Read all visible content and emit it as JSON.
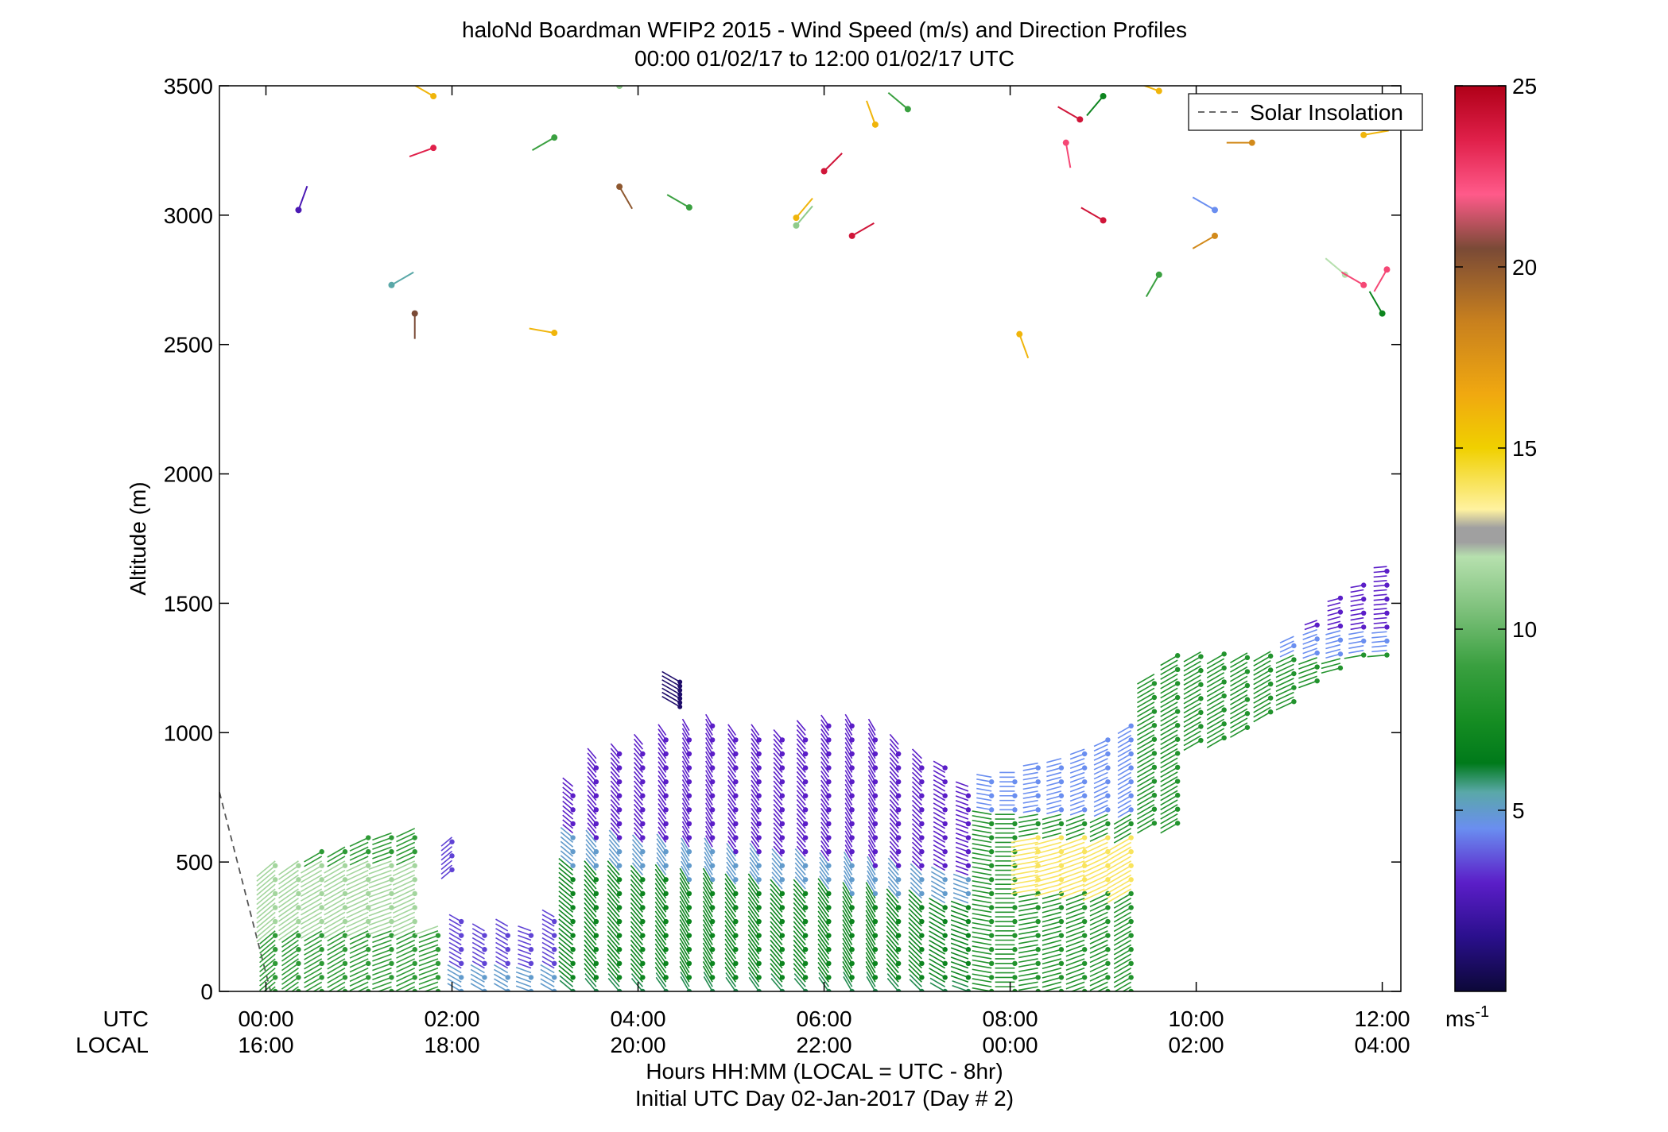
{
  "chart_data": {
    "type": "scatter",
    "title": "haloNd Boardman WFIP2 2015 - Wind Speed (m/s) and Direction Profiles",
    "subtitle": "00:00 01/02/17 to 12:00 01/02/17  UTC",
    "xlabel": "Hours HH:MM  (LOCAL = UTC - 8hr)",
    "xlabel2": "Initial UTC Day 02-Jan-2017 (Day # 2)",
    "ylabel": "Altitude (m)",
    "xlim": [
      -0.5,
      12.2
    ],
    "ylim": [
      0,
      3500
    ],
    "yticks": [
      0,
      500,
      1000,
      1500,
      2000,
      2500,
      3000,
      3500
    ],
    "xtick_row_label_utc": "UTC",
    "xtick_row_label_local": "LOCAL",
    "xticks": [
      {
        "hour": 0,
        "utc": "00:00",
        "local": "16:00"
      },
      {
        "hour": 2,
        "utc": "02:00",
        "local": "18:00"
      },
      {
        "hour": 4,
        "utc": "04:00",
        "local": "20:00"
      },
      {
        "hour": 6,
        "utc": "06:00",
        "local": "22:00"
      },
      {
        "hour": 8,
        "utc": "08:00",
        "local": "00:00"
      },
      {
        "hour": 10,
        "utc": "10:00",
        "local": "02:00"
      },
      {
        "hour": 12,
        "utc": "12:00",
        "local": "04:00"
      }
    ],
    "legend": {
      "placement": "top-right",
      "entries": [
        "Solar Insolation"
      ]
    },
    "solar_insolation": [
      [
        -0.5,
        770
      ],
      [
        0.05,
        0
      ]
    ],
    "colorbar": {
      "range": [
        0,
        25
      ],
      "ticks": [
        5,
        10,
        15,
        20,
        25
      ],
      "unit": "ms",
      "unit_sup": "-1",
      "stops": [
        [
          0,
          "#0c0838"
        ],
        [
          1.5,
          "#2a0f8c"
        ],
        [
          3,
          "#5b1ec8"
        ],
        [
          4.5,
          "#6a8ef0"
        ],
        [
          5.5,
          "#5aa8a8"
        ],
        [
          6.3,
          "#007a1a"
        ],
        [
          7.5,
          "#168d23"
        ],
        [
          9,
          "#3aa040"
        ],
        [
          10.5,
          "#7cc07a"
        ],
        [
          12,
          "#b6e0ae"
        ],
        [
          12.4,
          "#a0a0a0"
        ],
        [
          12.8,
          "#a0a0a0"
        ],
        [
          13.3,
          "#fff2a0"
        ],
        [
          15,
          "#f0d000"
        ],
        [
          16.5,
          "#f0a810"
        ],
        [
          18.5,
          "#c8801e"
        ],
        [
          20.5,
          "#7a4a36"
        ],
        [
          22,
          "#ff5a8a"
        ],
        [
          23.5,
          "#e0204a"
        ],
        [
          25,
          "#b00018"
        ]
      ]
    },
    "profiles": [
      {
        "t": 0.1,
        "bottom": 0,
        "top": 510,
        "dir": 230
      },
      {
        "t": 0.35,
        "bottom": 0,
        "top": 520,
        "dir": 235
      },
      {
        "t": 0.6,
        "bottom": 0,
        "top": 540,
        "dir": 240
      },
      {
        "t": 0.85,
        "bottom": 0,
        "top": 570,
        "dir": 240
      },
      {
        "t": 1.1,
        "bottom": 0,
        "top": 600,
        "dir": 245
      },
      {
        "t": 1.35,
        "bottom": 0,
        "top": 620,
        "dir": 250
      },
      {
        "t": 1.6,
        "bottom": 0,
        "top": 630,
        "dir": 245
      },
      {
        "t": 1.85,
        "bottom": 0,
        "top": 260,
        "dir": 250
      },
      {
        "t": 2.0,
        "bottom": 470,
        "top": 600,
        "dir": 230
      },
      {
        "t": 2.1,
        "bottom": 0,
        "top": 280,
        "dir": 300
      },
      {
        "t": 2.35,
        "bottom": 0,
        "top": 240,
        "dir": 300
      },
      {
        "t": 2.6,
        "bottom": 0,
        "top": 260,
        "dir": 300
      },
      {
        "t": 2.85,
        "bottom": 0,
        "top": 240,
        "dir": 290
      },
      {
        "t": 3.1,
        "bottom": 0,
        "top": 300,
        "dir": 300
      },
      {
        "t": 3.3,
        "bottom": 0,
        "top": 800,
        "dir": 310
      },
      {
        "t": 3.55,
        "bottom": 0,
        "top": 900,
        "dir": 320
      },
      {
        "t": 3.8,
        "bottom": 0,
        "top": 920,
        "dir": 320
      },
      {
        "t": 4.05,
        "bottom": 0,
        "top": 960,
        "dir": 320
      },
      {
        "t": 4.3,
        "bottom": 0,
        "top": 990,
        "dir": 325
      },
      {
        "t": 4.55,
        "bottom": 0,
        "top": 1010,
        "dir": 330
      },
      {
        "t": 4.8,
        "bottom": 0,
        "top": 1040,
        "dir": 330
      },
      {
        "t": 5.05,
        "bottom": 0,
        "top": 1000,
        "dir": 325
      },
      {
        "t": 5.3,
        "bottom": 0,
        "top": 990,
        "dir": 325
      },
      {
        "t": 5.55,
        "bottom": 0,
        "top": 980,
        "dir": 320
      },
      {
        "t": 5.8,
        "bottom": 0,
        "top": 1020,
        "dir": 320
      },
      {
        "t": 6.05,
        "bottom": 0,
        "top": 1040,
        "dir": 325
      },
      {
        "t": 6.3,
        "bottom": 0,
        "top": 1030,
        "dir": 330
      },
      {
        "t": 6.55,
        "bottom": 0,
        "top": 1010,
        "dir": 330
      },
      {
        "t": 6.8,
        "bottom": 0,
        "top": 960,
        "dir": 320
      },
      {
        "t": 7.05,
        "bottom": 0,
        "top": 900,
        "dir": 315
      },
      {
        "t": 7.3,
        "bottom": 0,
        "top": 870,
        "dir": 300
      },
      {
        "t": 7.55,
        "bottom": 0,
        "top": 800,
        "dir": 290
      },
      {
        "t": 7.8,
        "bottom": 0,
        "top": 830,
        "dir": 280
      },
      {
        "t": 8.05,
        "bottom": 0,
        "top": 860,
        "dir": 270
      },
      {
        "t": 8.3,
        "bottom": 0,
        "top": 890,
        "dir": 260
      },
      {
        "t": 8.55,
        "bottom": 0,
        "top": 910,
        "dir": 255
      },
      {
        "t": 8.8,
        "bottom": 0,
        "top": 940,
        "dir": 250
      },
      {
        "t": 9.05,
        "bottom": 0,
        "top": 980,
        "dir": 245
      },
      {
        "t": 9.3,
        "bottom": 0,
        "top": 1040,
        "dir": 240
      },
      {
        "t": 9.55,
        "bottom": 650,
        "top": 1230,
        "dir": 240
      },
      {
        "t": 9.8,
        "bottom": 650,
        "top": 1300,
        "dir": 240
      },
      {
        "t": 10.05,
        "bottom": 970,
        "top": 1320,
        "dir": 240
      },
      {
        "t": 10.3,
        "bottom": 980,
        "top": 1310,
        "dir": 240
      },
      {
        "t": 10.55,
        "bottom": 1020,
        "top": 1320,
        "dir": 240
      },
      {
        "t": 10.8,
        "bottom": 1080,
        "top": 1330,
        "dir": 240
      },
      {
        "t": 11.05,
        "bottom": 1120,
        "top": 1380,
        "dir": 245
      },
      {
        "t": 11.3,
        "bottom": 1200,
        "top": 1450,
        "dir": 250
      },
      {
        "t": 11.55,
        "bottom": 1250,
        "top": 1530,
        "dir": 255
      },
      {
        "t": 11.8,
        "bottom": 1300,
        "top": 1580,
        "dir": 260
      },
      {
        "t": 12.05,
        "bottom": 1300,
        "top": 1650,
        "dir": 265
      }
    ],
    "high_points": [
      {
        "t": 0.35,
        "alt": 3020,
        "speed": 2.5,
        "dir": 20
      },
      {
        "t": 1.35,
        "alt": 2730,
        "speed": 5.5,
        "dir": 60
      },
      {
        "t": 1.6,
        "alt": 2620,
        "speed": 20.5,
        "dir": 180
      },
      {
        "t": 1.8,
        "alt": 3260,
        "speed": 23.5,
        "dir": 250
      },
      {
        "t": 1.8,
        "alt": 3460,
        "speed": 16,
        "dir": 300
      },
      {
        "t": 3.1,
        "alt": 2545,
        "speed": 16,
        "dir": 280
      },
      {
        "t": 3.1,
        "alt": 3300,
        "speed": 9,
        "dir": 240
      },
      {
        "t": 3.8,
        "alt": 3500,
        "speed": 11,
        "dir": 280
      },
      {
        "t": 3.8,
        "alt": 3110,
        "speed": 20,
        "dir": 150
      },
      {
        "t": 4.55,
        "alt": 3030,
        "speed": 9,
        "dir": 300
      },
      {
        "t": 5.7,
        "alt": 2960,
        "speed": 11,
        "dir": 40
      },
      {
        "t": 5.7,
        "alt": 2990,
        "speed": 16,
        "dir": 40
      },
      {
        "t": 6.0,
        "alt": 3170,
        "speed": 24,
        "dir": 45
      },
      {
        "t": 6.3,
        "alt": 2920,
        "speed": 24,
        "dir": 60
      },
      {
        "t": 6.55,
        "alt": 3350,
        "speed": 16,
        "dir": 340
      },
      {
        "t": 6.9,
        "alt": 3410,
        "speed": 9,
        "dir": 310
      },
      {
        "t": 8.1,
        "alt": 2540,
        "speed": 16,
        "dir": 160
      },
      {
        "t": 8.6,
        "alt": 3280,
        "speed": 22.5,
        "dir": 170
      },
      {
        "t": 8.75,
        "alt": 3370,
        "speed": 24,
        "dir": 300
      },
      {
        "t": 9.0,
        "alt": 3460,
        "speed": 7,
        "dir": 220
      },
      {
        "t": 9.0,
        "alt": 2980,
        "speed": 24,
        "dir": 300
      },
      {
        "t": 9.6,
        "alt": 3480,
        "speed": 16,
        "dir": 290
      },
      {
        "t": 9.6,
        "alt": 2770,
        "speed": 9,
        "dir": 210
      },
      {
        "t": 10.2,
        "alt": 3020,
        "speed": 4.5,
        "dir": 300
      },
      {
        "t": 10.2,
        "alt": 2920,
        "speed": 18,
        "dir": 240
      },
      {
        "t": 10.6,
        "alt": 3280,
        "speed": 18,
        "dir": 270
      },
      {
        "t": 11.6,
        "alt": 2770,
        "speed": 12,
        "dir": 310
      },
      {
        "t": 11.8,
        "alt": 2730,
        "speed": 22.5,
        "dir": 300
      },
      {
        "t": 12.05,
        "alt": 2790,
        "speed": 22.5,
        "dir": 210
      },
      {
        "t": 11.8,
        "alt": 3310,
        "speed": 16,
        "dir": 80
      },
      {
        "t": 12.0,
        "alt": 2620,
        "speed": 7,
        "dir": 330
      }
    ],
    "purple_cap": {
      "t": 4.45,
      "bottom": 1100,
      "top": 1200,
      "dir": 300
    }
  }
}
